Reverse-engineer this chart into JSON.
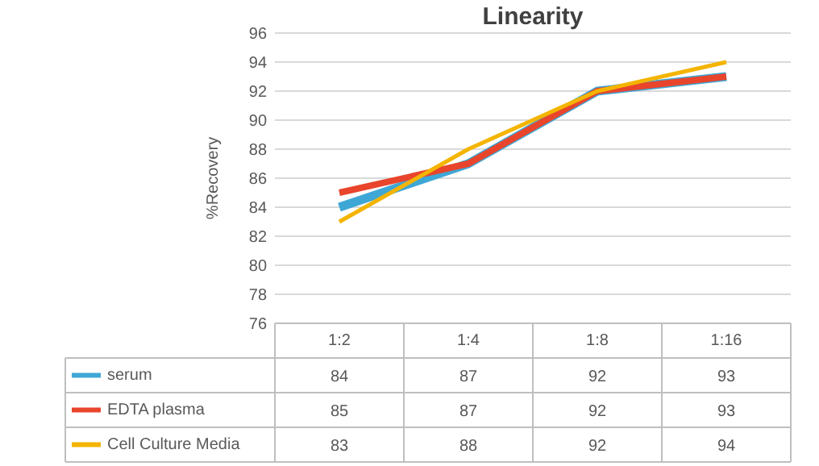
{
  "chart_data": {
    "type": "line",
    "title": "Linearity",
    "ylabel": "%Recovery",
    "categories": [
      "1:2",
      "1:4",
      "1:8",
      "1:16"
    ],
    "series": [
      {
        "name": "serum",
        "color": "#3ea7d6",
        "values": [
          84,
          87,
          92,
          93
        ]
      },
      {
        "name": "EDTA plasma",
        "color": "#e8452c",
        "values": [
          85,
          87,
          92,
          93
        ]
      },
      {
        "name": "Cell Culture Media",
        "color": "#f4b400",
        "values": [
          83,
          88,
          92,
          94
        ]
      }
    ],
    "ylim": [
      76,
      96
    ],
    "yticks": [
      76,
      78,
      80,
      82,
      84,
      86,
      88,
      90,
      92,
      94,
      96
    ],
    "grid": "y",
    "legend": "bottom",
    "data_labels": true
  }
}
